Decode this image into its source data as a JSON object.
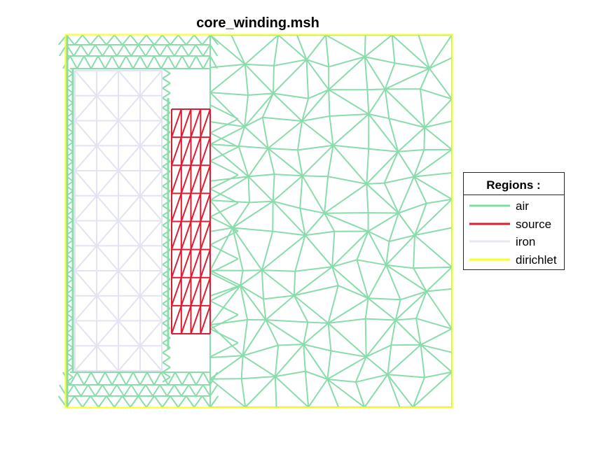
{
  "figure": {
    "title": "core_winding.msh"
  },
  "legend": {
    "title": "Regions :",
    "items": [
      {
        "label": "air",
        "color": "#7fdca0"
      },
      {
        "label": "source",
        "color": "#dc1e32"
      },
      {
        "label": "iron",
        "color": "#e6e6f5"
      },
      {
        "label": "dirichlet",
        "color": "#ffff1e"
      }
    ]
  },
  "colors": {
    "air": "#8adcab",
    "source": "#dc1e32",
    "iron": "#e3e3f3",
    "dirichlet": "#ffff1e",
    "background": "#ffffff"
  }
}
